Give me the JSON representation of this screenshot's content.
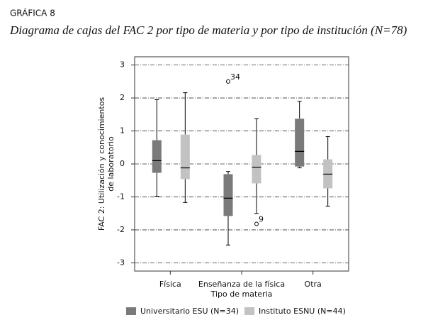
{
  "chart_data": {
    "type": "boxplot",
    "label": "GRÁFICA 8",
    "title": "Diagrama de cajas del FAC 2 por tipo de materia y por tipo de institución (N=78)",
    "y_label": [
      "FAC 2: Utilización y conocimientos",
      "de laboratorio"
    ],
    "x_label": "Tipo de materia",
    "categories": [
      "Física",
      "Enseñanza de la física",
      "Otra"
    ],
    "ylim": [
      -3.25,
      3.25
    ],
    "yticks": [
      -3,
      -2,
      -1,
      0,
      1,
      2,
      3
    ],
    "grid": true,
    "series": [
      {
        "name": "Universitario ESU (N=34)",
        "color": "#7a7a7a",
        "whisker_low": [
          -0.98,
          -2.46,
          -0.12
        ],
        "q1": [
          -0.27,
          -1.58,
          -0.08
        ],
        "median": [
          0.1,
          -1.04,
          0.38
        ],
        "q3": [
          0.72,
          -0.31,
          1.37
        ],
        "whisker_high": [
          1.95,
          -0.23,
          1.9
        ],
        "outliers": [
          null,
          {
            "value": 2.5,
            "label": "34"
          },
          null
        ]
      },
      {
        "name": "Instituto ESNU (N=44)",
        "color": "#c2c2c2",
        "whisker_low": [
          -1.17,
          -1.5,
          -1.28
        ],
        "q1": [
          -0.46,
          -0.59,
          -0.74
        ],
        "median": [
          -0.12,
          -0.1,
          -0.31
        ],
        "q3": [
          0.89,
          0.27,
          0.14
        ],
        "whisker_high": [
          2.16,
          1.37,
          0.83
        ],
        "outliers": [
          null,
          {
            "value": -1.82,
            "label": "9"
          },
          null
        ]
      }
    ]
  }
}
